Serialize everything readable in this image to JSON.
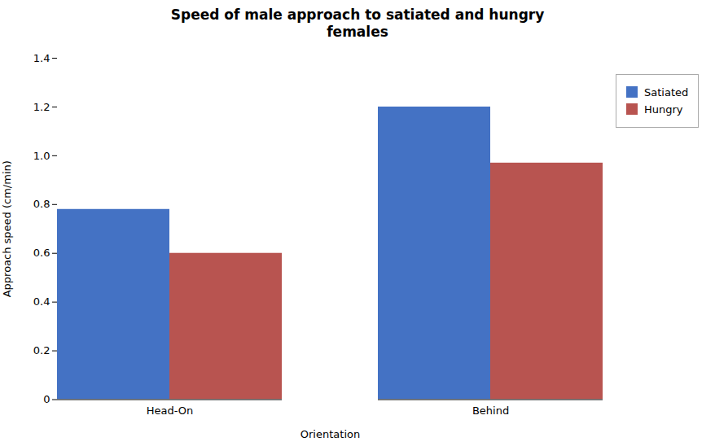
{
  "chart_data": {
    "type": "bar",
    "title": "Speed of male approach to satiated and hungry\nfemales",
    "xlabel": "Orientation",
    "ylabel": "Approach speed (cm/min)",
    "categories": [
      "Head-On",
      "Behind"
    ],
    "series": [
      {
        "name": "Satiated",
        "color": "#4472C4",
        "values": [
          0.78,
          1.2
        ]
      },
      {
        "name": "Hungry",
        "color": "#B85450",
        "values": [
          0.6,
          0.97
        ]
      }
    ],
    "ylim": [
      0,
      1.4
    ],
    "yticks": [
      0,
      0.2,
      0.4,
      0.6,
      0.8,
      {
        "value": 1.0,
        "label": "1.0"
      },
      1.2,
      1.4
    ],
    "grid": false,
    "legend": "right"
  }
}
